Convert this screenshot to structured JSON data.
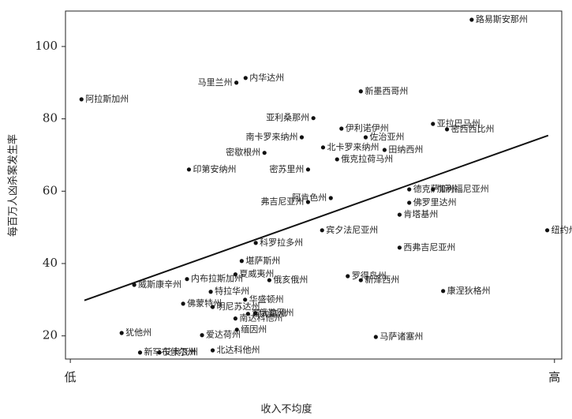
{
  "chart_data": {
    "type": "scatter",
    "x_label": "收入不均度",
    "y_label": "每百万人凶杀案发生率",
    "xlim": [
      -1,
      101.5
    ],
    "ylim": [
      13.6,
      109.8
    ],
    "xticks": [
      {
        "value": 0,
        "label": "低"
      },
      {
        "value": 100,
        "label": "高"
      }
    ],
    "yticks": [
      20,
      40,
      60,
      80,
      100
    ],
    "color": "#111",
    "points": [
      {
        "label": "路易斯安那州",
        "x": 82.9,
        "y": 107.4
      },
      {
        "label": "内华达州",
        "x": 36.2,
        "y": 91.3
      },
      {
        "label": "马里兰州",
        "x": 34.3,
        "y": 90.0
      },
      {
        "label": "新墨西哥州",
        "x": 60.0,
        "y": 87.6
      },
      {
        "label": "阿拉斯加州",
        "x": 2.3,
        "y": 85.4
      },
      {
        "label": "亚利桑那州",
        "x": 50.2,
        "y": 80.2
      },
      {
        "label": "伊利诺伊州",
        "x": 56.0,
        "y": 77.3
      },
      {
        "label": "亚拉巴马州",
        "x": 74.9,
        "y": 78.6
      },
      {
        "label": "密西西比州",
        "x": 77.8,
        "y": 77.1
      },
      {
        "label": "南卡罗来纳州",
        "x": 47.8,
        "y": 74.9
      },
      {
        "label": "佐治亚州",
        "x": 61.0,
        "y": 74.9
      },
      {
        "label": "北卡罗来纳州",
        "x": 52.2,
        "y": 72.1
      },
      {
        "label": "田纳西州",
        "x": 64.9,
        "y": 71.4
      },
      {
        "label": "俄克拉荷马州",
        "x": 55.1,
        "y": 68.8
      },
      {
        "label": "密歇根州",
        "x": 40.1,
        "y": 70.6
      },
      {
        "label": "印第安纳州",
        "x": 24.5,
        "y": 66.0
      },
      {
        "label": "密苏里州",
        "x": 49.1,
        "y": 66.0
      },
      {
        "label": "德克萨斯州",
        "x": 70.0,
        "y": 60.5
      },
      {
        "label": "加利福尼亚州",
        "x": 74.9,
        "y": 60.5
      },
      {
        "label": "阿肯色州",
        "x": 53.8,
        "y": 58.1
      },
      {
        "label": "弗吉尼亚州",
        "x": 49.1,
        "y": 57.0
      },
      {
        "label": "佛罗里达州",
        "x": 70.0,
        "y": 56.8
      },
      {
        "label": "肯塔基州",
        "x": 68.0,
        "y": 53.5
      },
      {
        "label": "宾夕法尼亚州",
        "x": 52.0,
        "y": 49.2
      },
      {
        "label": "纽约州",
        "x": 98.5,
        "y": 49.2
      },
      {
        "label": "科罗拉多州",
        "x": 38.3,
        "y": 45.7
      },
      {
        "label": "西弗吉尼亚州",
        "x": 68.0,
        "y": 44.4
      },
      {
        "label": "堪萨斯州",
        "x": 35.4,
        "y": 40.7
      },
      {
        "label": "夏威夷州",
        "x": 34.1,
        "y": 37.0
      },
      {
        "label": "罗得岛州",
        "x": 57.3,
        "y": 36.5
      },
      {
        "label": "内布拉斯加州",
        "x": 24.1,
        "y": 35.7
      },
      {
        "label": "俄亥俄州",
        "x": 41.1,
        "y": 35.4
      },
      {
        "label": "新泽西州",
        "x": 60.0,
        "y": 35.4
      },
      {
        "label": "威斯康辛州",
        "x": 13.2,
        "y": 34.1
      },
      {
        "label": "特拉华州",
        "x": 29.0,
        "y": 32.2
      },
      {
        "label": "康涅狄格州",
        "x": 77.0,
        "y": 32.4
      },
      {
        "label": "华盛顿州",
        "x": 36.1,
        "y": 30.0
      },
      {
        "label": "佛蒙特州",
        "x": 23.3,
        "y": 28.9
      },
      {
        "label": "明尼苏达州",
        "x": 29.4,
        "y": 28.0
      },
      {
        "label": "蒙大拿州",
        "x": 36.7,
        "y": 26.1
      },
      {
        "label": "俄勒冈州",
        "x": 38.2,
        "y": 26.3
      },
      {
        "label": "南达科他州",
        "x": 34.1,
        "y": 24.8
      },
      {
        "label": "缅因州",
        "x": 34.4,
        "y": 21.7
      },
      {
        "label": "犹他州",
        "x": 10.6,
        "y": 20.8
      },
      {
        "label": "爱达荷州",
        "x": 27.2,
        "y": 20.2
      },
      {
        "label": "马萨诸塞州",
        "x": 63.1,
        "y": 19.7
      },
      {
        "label": "新罕布什尔州",
        "x": 14.4,
        "y": 15.4
      },
      {
        "label": "艾奥瓦州",
        "x": 18.4,
        "y": 15.4
      },
      {
        "label": "北达科他州",
        "x": 29.4,
        "y": 16.0
      }
    ],
    "trend": {
      "x": [
        2.9,
        98.7
      ],
      "y": [
        29.8,
        75.4
      ]
    }
  }
}
